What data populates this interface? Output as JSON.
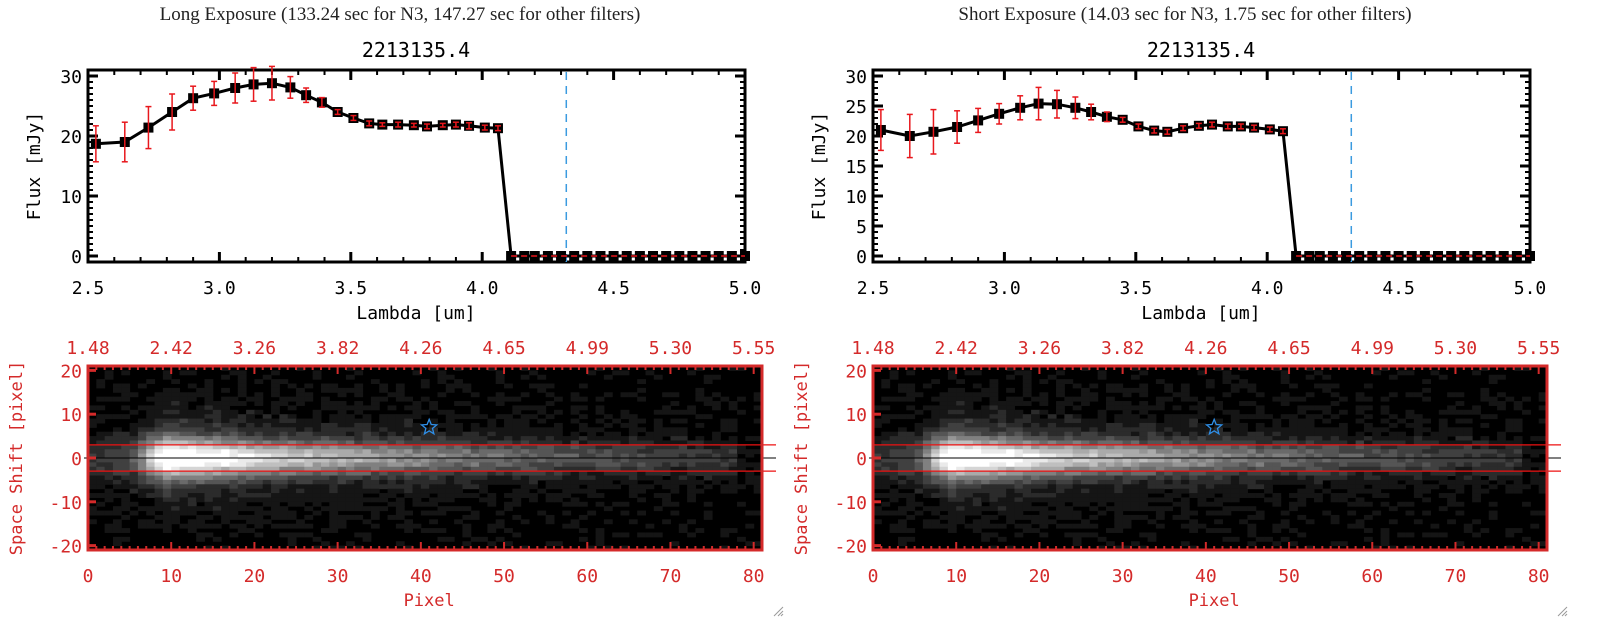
{
  "chart_data": [
    {
      "type": "line",
      "panel": "long",
      "panel_title": "Long Exposure (133.24 sec for N3, 147.27 sec for other filters)",
      "title": "2213135.4",
      "xlabel": "Lambda [um]",
      "ylabel": "Flux [mJy]",
      "xlim": [
        2.5,
        5.0
      ],
      "ylim": [
        -1,
        31
      ],
      "xticks": [
        "2.5",
        "3.0",
        "3.5",
        "4.0",
        "4.5",
        "5.0"
      ],
      "xtick_values": [
        2.5,
        3.0,
        3.5,
        4.0,
        4.5,
        5.0
      ],
      "yticks": [
        "0",
        "10",
        "20",
        "30"
      ],
      "ytick_values": [
        0,
        10,
        20,
        30
      ],
      "grid": false,
      "reference_line_x": 4.32,
      "zero_line": 0,
      "series": [
        {
          "name": "flux",
          "x": [
            2.53,
            2.64,
            2.73,
            2.82,
            2.9,
            2.98,
            3.06,
            3.13,
            3.2,
            3.27,
            3.33,
            3.39,
            3.45,
            3.51,
            3.57,
            3.62,
            3.68,
            3.74,
            3.79,
            3.85,
            3.9,
            3.95,
            4.01,
            4.06,
            4.11,
            4.16,
            4.2,
            4.25,
            4.3,
            4.35,
            4.4,
            4.45,
            4.5,
            4.55,
            4.6,
            4.65,
            4.7,
            4.75,
            4.8,
            4.85,
            4.9,
            4.95,
            5.0
          ],
          "y": [
            18.7,
            19.0,
            21.4,
            24.0,
            26.3,
            27.1,
            28.0,
            28.6,
            28.8,
            28.1,
            26.8,
            25.6,
            24.0,
            23.0,
            22.1,
            21.9,
            21.9,
            21.8,
            21.6,
            21.8,
            21.9,
            21.7,
            21.4,
            21.3,
            0,
            0,
            0,
            0,
            0,
            0,
            0,
            0,
            0,
            0,
            0,
            0,
            0,
            0,
            0,
            0,
            0,
            0,
            0
          ],
          "err": [
            3.0,
            3.3,
            3.5,
            3.0,
            2.0,
            2.0,
            2.5,
            2.8,
            2.8,
            1.8,
            1.2,
            0.8,
            0.4,
            0.4,
            0.4,
            0.3,
            0.4,
            0.3,
            0.4,
            0.3,
            0.4,
            0.5,
            0.4,
            0.4,
            0,
            0,
            0,
            0,
            0,
            0,
            0,
            0,
            0,
            0,
            0,
            0,
            0,
            0,
            0,
            0,
            0,
            0,
            0
          ]
        }
      ]
    },
    {
      "type": "line",
      "panel": "short",
      "panel_title": "Short Exposure (14.03 sec for N3, 1.75 sec for other filters)",
      "title": "2213135.4",
      "xlabel": "Lambda [um]",
      "ylabel": "Flux [mJy]",
      "xlim": [
        2.5,
        5.0
      ],
      "ylim": [
        -1,
        31
      ],
      "xticks": [
        "2.5",
        "3.0",
        "3.5",
        "4.0",
        "4.5",
        "5.0"
      ],
      "xtick_values": [
        2.5,
        3.0,
        3.5,
        4.0,
        4.5,
        5.0
      ],
      "yticks": [
        "0",
        "5",
        "10",
        "15",
        "20",
        "25",
        "30"
      ],
      "ytick_values": [
        0,
        5,
        10,
        15,
        20,
        25,
        30
      ],
      "grid": false,
      "reference_line_x": 4.32,
      "zero_line": 0,
      "series": [
        {
          "name": "flux",
          "x": [
            2.53,
            2.64,
            2.73,
            2.82,
            2.9,
            2.98,
            3.06,
            3.13,
            3.2,
            3.27,
            3.33,
            3.39,
            3.45,
            3.51,
            3.57,
            3.62,
            3.68,
            3.74,
            3.79,
            3.85,
            3.9,
            3.95,
            4.01,
            4.06,
            4.11,
            4.16,
            4.2,
            4.25,
            4.3,
            4.35,
            4.4,
            4.45,
            4.5,
            4.55,
            4.6,
            4.65,
            4.7,
            4.75,
            4.8,
            4.85,
            4.9,
            4.95,
            5.0
          ],
          "y": [
            21.0,
            20.0,
            20.7,
            21.5,
            22.6,
            23.7,
            24.7,
            25.4,
            25.3,
            24.7,
            24.0,
            23.2,
            22.7,
            21.6,
            20.9,
            20.7,
            21.3,
            21.7,
            21.9,
            21.6,
            21.6,
            21.4,
            21.1,
            20.8,
            0,
            0,
            0,
            0,
            0,
            0,
            0,
            0,
            0,
            0,
            0,
            0,
            0,
            0,
            0,
            0,
            0,
            0,
            0
          ],
          "err": [
            3.4,
            3.6,
            3.7,
            2.7,
            2.0,
            1.7,
            2.0,
            2.7,
            2.3,
            1.8,
            1.3,
            0.8,
            0.4,
            0.4,
            0.4,
            0.4,
            0.4,
            0.4,
            0.4,
            0.4,
            0.4,
            0.4,
            0.4,
            0.4,
            0,
            0,
            0,
            0,
            0,
            0,
            0,
            0,
            0,
            0,
            0,
            0,
            0,
            0,
            0,
            0,
            0,
            0,
            0
          ]
        }
      ]
    },
    {
      "type": "heatmap",
      "panel": "long",
      "xlabel": "Pixel",
      "ylabel": "Space Shift [pixel]",
      "xlim": [
        0,
        81
      ],
      "ylim": [
        -21,
        21
      ],
      "xticks": [
        "0",
        "10",
        "20",
        "30",
        "40",
        "50",
        "60",
        "70",
        "80"
      ],
      "xtick_values": [
        0,
        10,
        20,
        30,
        40,
        50,
        60,
        70,
        80
      ],
      "top_xticks": [
        "1.48",
        "2.42",
        "3.26",
        "3.82",
        "4.26",
        "4.65",
        "4.99",
        "5.30",
        "5.55"
      ],
      "yticks": [
        "20",
        "10",
        "0",
        "-10",
        "-20"
      ],
      "ytick_values": [
        20,
        10,
        0,
        -10,
        -20
      ],
      "colormap": "grayscale",
      "aperture_lines": [
        3,
        -3
      ],
      "center_line": 0,
      "marker": {
        "type": "star",
        "x": 41,
        "y": 7
      }
    },
    {
      "type": "heatmap",
      "panel": "short",
      "xlabel": "Pixel",
      "ylabel": "Space Shift [pixel]",
      "xlim": [
        0,
        81
      ],
      "ylim": [
        -21,
        21
      ],
      "xticks": [
        "0",
        "10",
        "20",
        "30",
        "40",
        "50",
        "60",
        "70",
        "80"
      ],
      "xtick_values": [
        0,
        10,
        20,
        30,
        40,
        50,
        60,
        70,
        80
      ],
      "top_xticks": [
        "1.48",
        "2.42",
        "3.26",
        "3.82",
        "4.26",
        "4.65",
        "4.99",
        "5.30",
        "5.55"
      ],
      "yticks": [
        "20",
        "10",
        "0",
        "-10",
        "-20"
      ],
      "ytick_values": [
        20,
        10,
        0,
        -10,
        -20
      ],
      "colormap": "grayscale",
      "aperture_lines": [
        3,
        -3
      ],
      "center_line": 0,
      "marker": {
        "type": "star",
        "x": 41,
        "y": 7
      }
    }
  ],
  "colors": {
    "line": "#000000",
    "errorbar": "#e8171c",
    "axis_red": "#d42a2a",
    "ref_line": "#3b9be0",
    "star": "#2f8fe8"
  }
}
